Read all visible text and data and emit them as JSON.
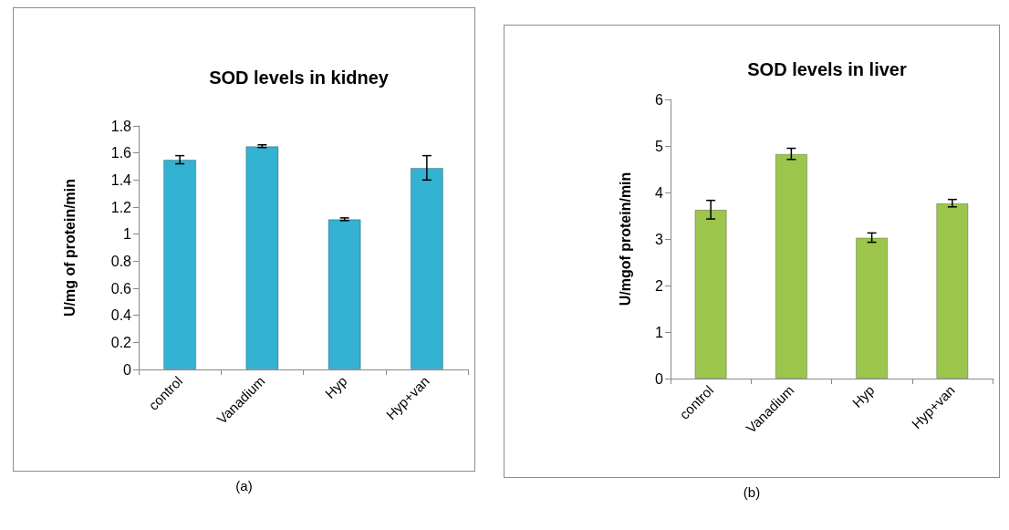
{
  "chart_data": [
    {
      "type": "bar",
      "title": "SOD levels in kidney",
      "ylabel": "U/mg of protein/min",
      "categories": [
        "control",
        "Vanadium",
        "Hyp",
        "Hyp+van"
      ],
      "values": [
        1.55,
        1.65,
        1.11,
        1.49
      ],
      "errors": [
        0.03,
        0.01,
        0.01,
        0.09
      ],
      "color": "#33b2d2",
      "ylim": [
        0,
        1.8
      ],
      "yticks": [
        0,
        0.2,
        0.4,
        0.6,
        0.8,
        1,
        1.2,
        1.4,
        1.6,
        1.8
      ],
      "grid": false,
      "annotations": [
        "(a)"
      ]
    },
    {
      "type": "bar",
      "title": "SOD levels in liver",
      "ylabel": "U/mgof protein/min",
      "categories": [
        "control",
        "Vanadium",
        "Hyp",
        "Hyp+van"
      ],
      "values": [
        3.63,
        4.83,
        3.03,
        3.77
      ],
      "errors": [
        0.2,
        0.12,
        0.1,
        0.08
      ],
      "color": "#9cc54c",
      "ylim": [
        0,
        6
      ],
      "yticks": [
        0,
        1,
        2,
        3,
        4,
        5,
        6
      ],
      "grid": false,
      "annotations": [
        "(b)"
      ]
    }
  ]
}
